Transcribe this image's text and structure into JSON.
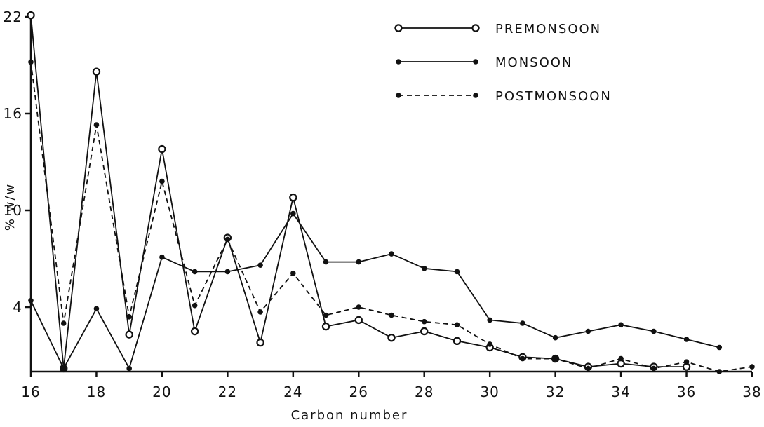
{
  "chart_data": {
    "type": "line",
    "xlabel": "Carbon number",
    "ylabel": "% w/w",
    "xlim": [
      16,
      38
    ],
    "ylim": [
      0,
      22
    ],
    "xticks": [
      16,
      18,
      20,
      22,
      24,
      26,
      28,
      30,
      32,
      34,
      36,
      38
    ],
    "xtick_labels": [
      "16",
      "18",
      "20",
      "22",
      "24",
      "26",
      "28",
      "30",
      "32",
      "34",
      "36",
      "38"
    ],
    "yticks": [
      4,
      10,
      16,
      22
    ],
    "ytick_labels": [
      "4",
      "10",
      "16",
      "22"
    ],
    "grid": false,
    "legend_position": "top-right",
    "series": [
      {
        "name": "PREMONSOON",
        "line_style": "solid",
        "marker": "open-circle",
        "x": [
          16,
          17,
          18,
          19,
          20,
          21,
          22,
          23,
          24,
          25,
          26,
          27,
          28,
          29,
          30,
          31,
          32,
          33,
          34,
          35,
          36
        ],
        "y": [
          22.1,
          0.2,
          18.6,
          2.3,
          13.8,
          2.5,
          8.3,
          1.8,
          10.8,
          2.8,
          3.2,
          2.1,
          2.5,
          1.9,
          1.5,
          0.9,
          0.8,
          0.3,
          0.5,
          0.3,
          0.3
        ]
      },
      {
        "name": "MONSOON",
        "line_style": "solid",
        "marker": "filled-dot",
        "x": [
          16,
          17,
          18,
          19,
          20,
          21,
          22,
          23,
          24,
          25,
          26,
          27,
          28,
          29,
          30,
          31,
          32,
          33,
          34,
          35,
          36,
          37
        ],
        "y": [
          4.4,
          0.2,
          3.9,
          0.2,
          7.1,
          6.2,
          6.2,
          6.6,
          9.8,
          6.8,
          6.8,
          7.3,
          6.4,
          6.2,
          3.2,
          3.0,
          2.1,
          2.5,
          2.9,
          2.5,
          2.0,
          1.5
        ]
      },
      {
        "name": "POSTMONSOON",
        "line_style": "dashed",
        "marker": "filled-dot",
        "x": [
          16,
          17,
          18,
          19,
          20,
          21,
          22,
          23,
          24,
          25,
          26,
          27,
          28,
          29,
          30,
          31,
          32,
          33,
          34,
          35,
          36,
          37,
          38
        ],
        "y": [
          19.2,
          3.0,
          15.3,
          3.4,
          11.8,
          4.1,
          8.2,
          3.7,
          6.1,
          3.5,
          4.0,
          3.5,
          3.1,
          2.9,
          1.7,
          0.8,
          0.8,
          0.2,
          0.8,
          0.2,
          0.6,
          0.0,
          0.3
        ]
      }
    ]
  }
}
